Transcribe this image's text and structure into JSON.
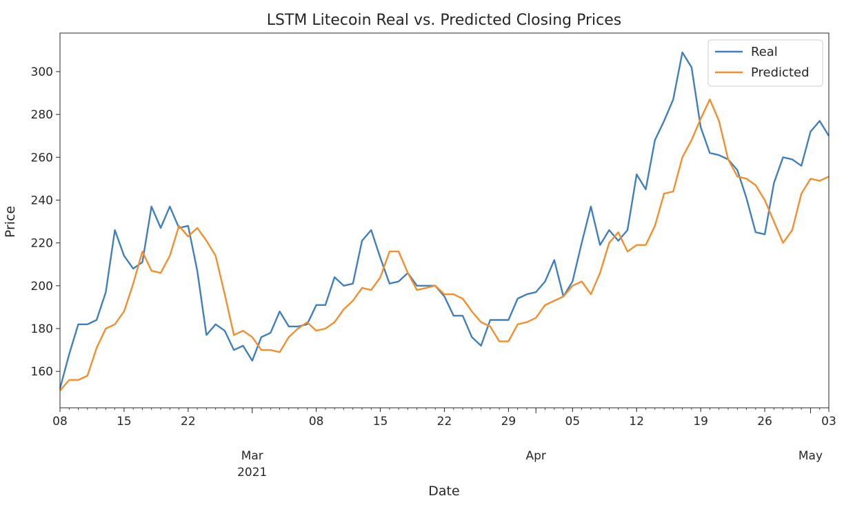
{
  "chart_data": {
    "type": "line",
    "title": "LSTM Litecoin Real vs. Predicted Closing Prices",
    "xlabel": "Date",
    "ylabel": "Price",
    "x_range": [
      "2021-02-08",
      "2021-05-03"
    ],
    "ylim": [
      143,
      318
    ],
    "yticks": [
      160,
      180,
      200,
      220,
      240,
      260,
      280,
      300
    ],
    "grid": false,
    "legend_position": "upper right",
    "x_tick_labels": [
      {
        "date": "2021-02-08",
        "label": "08"
      },
      {
        "date": "2021-02-15",
        "label": "15"
      },
      {
        "date": "2021-02-22",
        "label": "22"
      },
      {
        "date": "2021-03-01",
        "label": "Mar\n2021",
        "major": true
      },
      {
        "date": "2021-03-08",
        "label": "08"
      },
      {
        "date": "2021-03-15",
        "label": "15"
      },
      {
        "date": "2021-03-22",
        "label": "22"
      },
      {
        "date": "2021-03-29",
        "label": "29"
      },
      {
        "date": "2021-04-01",
        "label": "Apr",
        "major": true
      },
      {
        "date": "2021-04-05",
        "label": "05"
      },
      {
        "date": "2021-04-12",
        "label": "12"
      },
      {
        "date": "2021-04-19",
        "label": "19"
      },
      {
        "date": "2021-04-26",
        "label": "26"
      },
      {
        "date": "2021-05-01",
        "label": "May",
        "major": true
      },
      {
        "date": "2021-05-03",
        "label": "03"
      }
    ],
    "x": [
      "2021-02-08",
      "2021-02-09",
      "2021-02-10",
      "2021-02-11",
      "2021-02-12",
      "2021-02-13",
      "2021-02-14",
      "2021-02-15",
      "2021-02-16",
      "2021-02-17",
      "2021-02-18",
      "2021-02-19",
      "2021-02-20",
      "2021-02-21",
      "2021-02-22",
      "2021-02-23",
      "2021-02-24",
      "2021-02-25",
      "2021-02-26",
      "2021-02-27",
      "2021-02-28",
      "2021-03-01",
      "2021-03-02",
      "2021-03-03",
      "2021-03-04",
      "2021-03-05",
      "2021-03-06",
      "2021-03-07",
      "2021-03-08",
      "2021-03-09",
      "2021-03-10",
      "2021-03-11",
      "2021-03-12",
      "2021-03-13",
      "2021-03-14",
      "2021-03-15",
      "2021-03-16",
      "2021-03-17",
      "2021-03-18",
      "2021-03-19",
      "2021-03-20",
      "2021-03-21",
      "2021-03-22",
      "2021-03-23",
      "2021-03-24",
      "2021-03-25",
      "2021-03-26",
      "2021-03-27",
      "2021-03-28",
      "2021-03-29",
      "2021-03-30",
      "2021-03-31",
      "2021-04-01",
      "2021-04-02",
      "2021-04-03",
      "2021-04-04",
      "2021-04-05",
      "2021-04-06",
      "2021-04-07",
      "2021-04-08",
      "2021-04-09",
      "2021-04-10",
      "2021-04-11",
      "2021-04-12",
      "2021-04-13",
      "2021-04-14",
      "2021-04-15",
      "2021-04-16",
      "2021-04-17",
      "2021-04-18",
      "2021-04-19",
      "2021-04-20",
      "2021-04-21",
      "2021-04-22",
      "2021-04-23",
      "2021-04-24",
      "2021-04-25",
      "2021-04-26",
      "2021-04-27",
      "2021-04-28",
      "2021-04-29",
      "2021-04-30",
      "2021-05-01",
      "2021-05-02",
      "2021-05-03"
    ],
    "series": [
      {
        "name": "Real",
        "color": "#3f7fbd",
        "values": [
          152,
          168,
          182,
          182,
          184,
          197,
          226,
          214,
          208,
          211,
          237,
          227,
          237,
          227,
          228,
          207,
          177,
          182,
          179,
          170,
          172,
          165,
          176,
          178,
          188,
          181,
          181,
          182,
          191,
          191,
          204,
          200,
          201,
          221,
          226,
          213,
          201,
          202,
          206,
          200,
          200,
          200,
          195,
          186,
          186,
          176,
          172,
          184,
          184,
          184,
          194,
          196,
          197,
          202,
          212,
          195,
          202,
          220,
          237,
          219,
          226,
          221,
          226,
          252,
          245,
          268,
          277,
          287,
          309,
          302,
          274,
          262,
          261,
          259,
          254,
          241,
          225,
          224,
          248,
          260,
          259,
          256,
          272,
          277,
          270
        ]
      },
      {
        "name": "Predicted",
        "color": "#f28e2b",
        "values": [
          151,
          156,
          156,
          158,
          171,
          180,
          182,
          188,
          201,
          216,
          207,
          206,
          214,
          228,
          223,
          227,
          221,
          214,
          196,
          177,
          179,
          176,
          170,
          170,
          169,
          176,
          180,
          183,
          179,
          180,
          183,
          189,
          193,
          199,
          198,
          204,
          216,
          216,
          206,
          198,
          199,
          200,
          196,
          196,
          194,
          188,
          183,
          181,
          174,
          174,
          182,
          183,
          185,
          191,
          193,
          195,
          200,
          202,
          196,
          206,
          220,
          225,
          216,
          219,
          219,
          228,
          243,
          244,
          260,
          268,
          278,
          287,
          277,
          259,
          251,
          250,
          247,
          240,
          230,
          220,
          226,
          243,
          250,
          249,
          251
        ]
      }
    ]
  }
}
